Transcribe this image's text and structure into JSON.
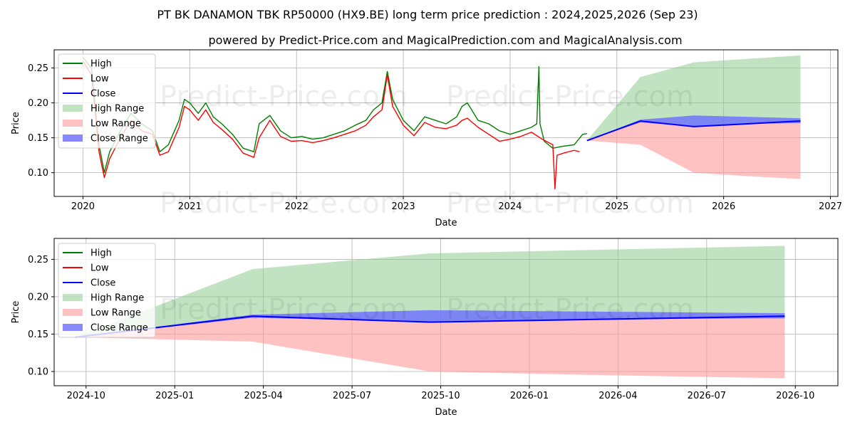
{
  "title": "PT BK DANAMON TBK RP50000 (HX9.BE) long term price prediction : 2024,2025,2026 (Sep 23)",
  "subtitle": "powered by Predict-Price.com and MagicalPrediction.com and MagicalAnalysis.com",
  "watermark": "Predict-Price.com",
  "colors": {
    "high": "#008000",
    "low": "#ff0000",
    "close": "#0000ff",
    "high_range": "#8fcc8f",
    "low_range": "#ff9999",
    "close_range": "#6b6bff"
  },
  "chart_data": [
    {
      "type": "line",
      "name": "full-history",
      "xlabel": "Date",
      "ylabel": "Price",
      "xlim": [
        2019.73,
        2027.07
      ],
      "ylim": [
        0.066,
        0.276
      ],
      "xticks": [
        2020,
        2021,
        2022,
        2023,
        2024,
        2025,
        2026,
        2027
      ],
      "xtick_labels": [
        "2020",
        "2021",
        "2022",
        "2023",
        "2024",
        "2025",
        "2026",
        "2027"
      ],
      "yticks": [
        0.1,
        0.15,
        0.2,
        0.25
      ],
      "ytick_labels": [
        "0.10",
        "0.15",
        "0.20",
        "0.25"
      ],
      "legend": {
        "position": "top-left",
        "entries": [
          "High",
          "Low",
          "Close",
          "High Range",
          "Low Range",
          "Close Range"
        ]
      },
      "series": [
        {
          "name": "High",
          "x": [
            2020.0,
            2020.08,
            2020.15,
            2020.2,
            2020.25,
            2020.35,
            2020.45,
            2020.55,
            2020.65,
            2020.72,
            2020.8,
            2020.9,
            2020.95,
            2021.0,
            2021.08,
            2021.15,
            2021.22,
            2021.3,
            2021.4,
            2021.5,
            2021.6,
            2021.65,
            2021.75,
            2021.85,
            2021.95,
            2022.05,
            2022.15,
            2022.25,
            2022.35,
            2022.45,
            2022.55,
            2022.65,
            2022.72,
            2022.8,
            2022.85,
            2022.9,
            2023.0,
            2023.1,
            2023.2,
            2023.3,
            2023.4,
            2023.5,
            2023.55,
            2023.6,
            2023.7,
            2023.8,
            2023.9,
            2024.0,
            2024.1,
            2024.2,
            2024.25,
            2024.27,
            2024.28,
            2024.32,
            2024.4,
            2024.5,
            2024.6,
            2024.68,
            2024.72
          ],
          "values": [
            0.265,
            0.25,
            0.14,
            0.1,
            0.13,
            0.16,
            0.185,
            0.17,
            0.16,
            0.13,
            0.14,
            0.175,
            0.205,
            0.2,
            0.185,
            0.2,
            0.18,
            0.17,
            0.155,
            0.135,
            0.13,
            0.17,
            0.182,
            0.16,
            0.15,
            0.152,
            0.148,
            0.15,
            0.155,
            0.16,
            0.168,
            0.175,
            0.19,
            0.2,
            0.245,
            0.205,
            0.175,
            0.16,
            0.18,
            0.175,
            0.17,
            0.18,
            0.195,
            0.2,
            0.175,
            0.17,
            0.16,
            0.155,
            0.16,
            0.165,
            0.17,
            0.252,
            0.17,
            0.145,
            0.135,
            0.138,
            0.14,
            0.155,
            0.156
          ]
        },
        {
          "name": "Low",
          "x": [
            2020.0,
            2020.08,
            2020.15,
            2020.2,
            2020.25,
            2020.35,
            2020.45,
            2020.55,
            2020.65,
            2020.72,
            2020.8,
            2020.9,
            2020.95,
            2021.0,
            2021.08,
            2021.15,
            2021.22,
            2021.3,
            2021.4,
            2021.5,
            2021.6,
            2021.65,
            2021.75,
            2021.85,
            2021.95,
            2022.05,
            2022.15,
            2022.25,
            2022.35,
            2022.45,
            2022.55,
            2022.65,
            2022.72,
            2022.8,
            2022.85,
            2022.9,
            2023.0,
            2023.1,
            2023.2,
            2023.3,
            2023.4,
            2023.5,
            2023.55,
            2023.6,
            2023.7,
            2023.8,
            2023.9,
            2024.0,
            2024.1,
            2024.2,
            2024.3,
            2024.4,
            2024.42,
            2024.44,
            2024.5,
            2024.6,
            2024.65
          ],
          "values": [
            0.26,
            0.24,
            0.13,
            0.093,
            0.12,
            0.15,
            0.175,
            0.16,
            0.155,
            0.125,
            0.13,
            0.165,
            0.195,
            0.19,
            0.175,
            0.19,
            0.172,
            0.162,
            0.148,
            0.128,
            0.122,
            0.15,
            0.175,
            0.152,
            0.145,
            0.146,
            0.143,
            0.146,
            0.15,
            0.155,
            0.16,
            0.168,
            0.18,
            0.19,
            0.24,
            0.195,
            0.168,
            0.153,
            0.172,
            0.165,
            0.163,
            0.168,
            0.175,
            0.178,
            0.165,
            0.155,
            0.145,
            0.148,
            0.152,
            0.158,
            0.148,
            0.14,
            0.077,
            0.125,
            0.128,
            0.132,
            0.13
          ]
        },
        {
          "name": "Close",
          "x": [
            2024.72,
            2025.22,
            2025.72,
            2026.22,
            2026.72
          ],
          "values": [
            0.146,
            0.174,
            0.166,
            0.17,
            0.174
          ]
        },
        {
          "name": "High Range",
          "x": [
            2024.72,
            2025.22,
            2025.72,
            2026.22,
            2026.72
          ],
          "lower": [
            0.146,
            0.174,
            0.166,
            0.17,
            0.174
          ],
          "upper": [
            0.146,
            0.237,
            0.258,
            0.263,
            0.268
          ]
        },
        {
          "name": "Low Range",
          "x": [
            2024.72,
            2025.22,
            2025.72,
            2026.22,
            2026.72
          ],
          "lower": [
            0.146,
            0.14,
            0.1,
            0.095,
            0.091
          ],
          "upper": [
            0.146,
            0.174,
            0.166,
            0.17,
            0.174
          ]
        },
        {
          "name": "Close Range",
          "x": [
            2024.72,
            2025.22,
            2025.72,
            2026.22,
            2026.72
          ],
          "lower": [
            0.146,
            0.172,
            0.166,
            0.17,
            0.171
          ],
          "upper": [
            0.146,
            0.176,
            0.182,
            0.18,
            0.178
          ]
        }
      ]
    },
    {
      "type": "line",
      "name": "prediction-zoom",
      "xlabel": "Date",
      "ylabel": "Price",
      "xlim": [
        2024.66,
        2026.87
      ],
      "ylim": [
        0.081,
        0.278
      ],
      "xticks": [
        2024.75,
        2025.0,
        2025.25,
        2025.5,
        2025.75,
        2026.0,
        2026.25,
        2026.5,
        2026.75
      ],
      "xtick_labels": [
        "2024-10",
        "2025-01",
        "2025-04",
        "2025-07",
        "2025-10",
        "2026-01",
        "2026-04",
        "2026-07",
        "2026-10"
      ],
      "yticks": [
        0.1,
        0.15,
        0.2,
        0.25
      ],
      "ytick_labels": [
        "0.10",
        "0.15",
        "0.20",
        "0.25"
      ],
      "legend": {
        "position": "top-left",
        "entries": [
          "High",
          "Low",
          "Close",
          "High Range",
          "Low Range",
          "Close Range"
        ]
      },
      "series": [
        {
          "name": "Close",
          "x": [
            2024.72,
            2025.22,
            2025.72,
            2026.22,
            2026.72
          ],
          "values": [
            0.146,
            0.174,
            0.166,
            0.17,
            0.174
          ]
        },
        {
          "name": "High Range",
          "x": [
            2024.72,
            2025.22,
            2025.72,
            2026.22,
            2026.72
          ],
          "lower": [
            0.146,
            0.174,
            0.166,
            0.17,
            0.174
          ],
          "upper": [
            0.146,
            0.237,
            0.258,
            0.263,
            0.268
          ]
        },
        {
          "name": "Low Range",
          "x": [
            2024.72,
            2025.22,
            2025.72,
            2026.22,
            2026.72
          ],
          "lower": [
            0.146,
            0.14,
            0.1,
            0.095,
            0.091
          ],
          "upper": [
            0.146,
            0.174,
            0.166,
            0.17,
            0.174
          ]
        },
        {
          "name": "Close Range",
          "x": [
            2024.72,
            2025.22,
            2025.72,
            2026.22,
            2026.72
          ],
          "lower": [
            0.146,
            0.172,
            0.166,
            0.17,
            0.171
          ],
          "upper": [
            0.146,
            0.176,
            0.182,
            0.18,
            0.178
          ]
        }
      ]
    }
  ]
}
